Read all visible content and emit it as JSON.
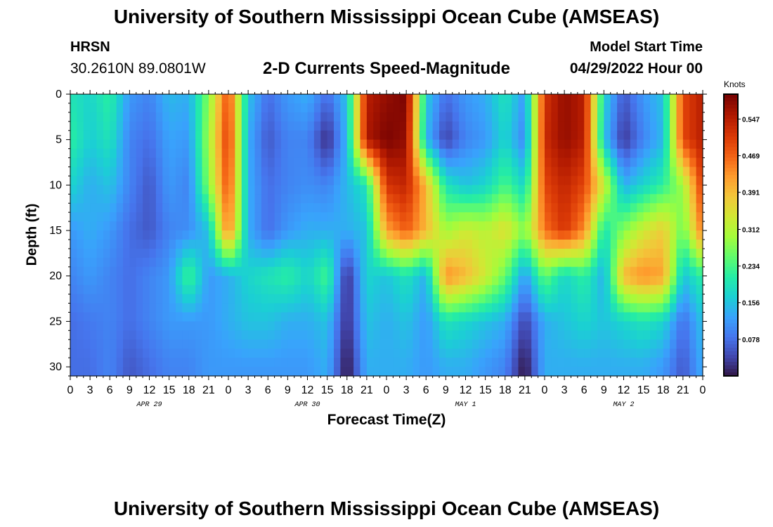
{
  "page": {
    "main_title": "University of Southern Mississippi Ocean Cube (AMSEAS)",
    "bottom_title": "University of Southern Mississippi Ocean Cube (AMSEAS)",
    "station": "HRSN",
    "coords": "30.2610N  89.0801W",
    "plot_title": "2-D Currents Speed-Magnitude",
    "start_label": "Model Start Time",
    "start_value": "04/29/2022 Hour 00"
  },
  "chart_data": {
    "type": "heatmap",
    "title": "2-D Currents Speed-Magnitude",
    "xlabel": "Forecast Time(Z)",
    "ylabel": "Depth (ft)",
    "x_range_hours": [
      0,
      96
    ],
    "y_range_ft": [
      0,
      31
    ],
    "x_tick_labels": [
      "0",
      "3",
      "6",
      "9",
      "12",
      "15",
      "18",
      "21",
      "0",
      "3",
      "6",
      "9",
      "12",
      "15",
      "18",
      "21",
      "0",
      "3",
      "6",
      "9",
      "12",
      "15",
      "18",
      "21",
      "0",
      "3",
      "6",
      "9",
      "12",
      "15",
      "18",
      "21",
      "0"
    ],
    "x_tick_hours": [
      0,
      3,
      6,
      9,
      12,
      15,
      18,
      21,
      24,
      27,
      30,
      33,
      36,
      39,
      42,
      45,
      48,
      51,
      54,
      57,
      60,
      63,
      66,
      69,
      72,
      75,
      78,
      81,
      84,
      87,
      90,
      93,
      96
    ],
    "y_ticks": [
      0,
      5,
      10,
      15,
      20,
      25,
      30
    ],
    "day_labels": [
      {
        "text": "APR 29",
        "hour": 12
      },
      {
        "text": "APR 30",
        "hour": 36
      },
      {
        "text": "MAY 1",
        "hour": 60
      },
      {
        "text": "MAY 2",
        "hour": 84
      }
    ],
    "colorbar": {
      "unit": "Knots",
      "ticks": [
        0.547,
        0.469,
        0.391,
        0.312,
        0.234,
        0.156,
        0.078
      ],
      "range": [
        0.0,
        0.6
      ],
      "colors": [
        "#30123b",
        "#4145ab",
        "#4675ed",
        "#39a2fc",
        "#1bcfd4",
        "#24eca6",
        "#61fc6c",
        "#a4fc3b",
        "#d1e834",
        "#f3c63a",
        "#fe9b2d",
        "#f36315",
        "#d93806",
        "#b11901",
        "#7a0402"
      ]
    },
    "columns_hours": [
      0,
      3,
      6,
      9,
      12,
      15,
      18,
      21,
      24,
      27,
      30,
      33,
      36,
      39,
      42,
      45,
      48,
      51,
      54,
      57,
      60,
      63,
      66,
      69,
      72,
      75,
      78,
      81,
      84,
      87,
      90,
      93,
      96
    ],
    "rows_depth_ft": [
      0,
      5,
      10,
      15,
      20,
      25,
      30
    ],
    "speed_knots": [
      [
        0.2,
        0.18,
        0.22,
        0.12,
        0.1,
        0.15,
        0.14,
        0.28,
        0.5,
        0.16,
        0.08,
        0.12,
        0.14,
        0.08,
        0.16,
        0.55,
        0.58,
        0.6,
        0.17,
        0.08,
        0.12,
        0.14,
        0.2,
        0.12,
        0.52,
        0.58,
        0.55,
        0.18,
        0.06,
        0.12,
        0.16,
        0.5,
        0.55
      ],
      [
        0.22,
        0.17,
        0.2,
        0.1,
        0.08,
        0.13,
        0.12,
        0.3,
        0.52,
        0.14,
        0.06,
        0.1,
        0.1,
        0.02,
        0.15,
        0.56,
        0.6,
        0.58,
        0.15,
        0.04,
        0.1,
        0.12,
        0.18,
        0.1,
        0.53,
        0.58,
        0.55,
        0.16,
        0.03,
        0.1,
        0.15,
        0.5,
        0.55
      ],
      [
        0.18,
        0.14,
        0.16,
        0.1,
        0.06,
        0.12,
        0.1,
        0.28,
        0.5,
        0.14,
        0.08,
        0.1,
        0.11,
        0.1,
        0.15,
        0.2,
        0.52,
        0.54,
        0.4,
        0.2,
        0.16,
        0.18,
        0.24,
        0.18,
        0.5,
        0.54,
        0.5,
        0.34,
        0.14,
        0.18,
        0.22,
        0.3,
        0.52
      ],
      [
        0.12,
        0.14,
        0.12,
        0.08,
        0.06,
        0.1,
        0.11,
        0.16,
        0.46,
        0.14,
        0.08,
        0.12,
        0.14,
        0.14,
        0.14,
        0.16,
        0.42,
        0.48,
        0.4,
        0.3,
        0.34,
        0.32,
        0.36,
        0.28,
        0.46,
        0.52,
        0.44,
        0.2,
        0.28,
        0.34,
        0.38,
        0.26,
        0.46
      ],
      [
        0.1,
        0.12,
        0.1,
        0.08,
        0.1,
        0.12,
        0.24,
        0.12,
        0.14,
        0.18,
        0.2,
        0.22,
        0.18,
        0.24,
        0.02,
        0.18,
        0.16,
        0.2,
        0.14,
        0.44,
        0.4,
        0.34,
        0.26,
        0.12,
        0.26,
        0.18,
        0.22,
        0.14,
        0.4,
        0.44,
        0.42,
        0.16,
        0.22
      ],
      [
        0.08,
        0.09,
        0.1,
        0.08,
        0.1,
        0.12,
        0.12,
        0.12,
        0.14,
        0.16,
        0.16,
        0.14,
        0.14,
        0.16,
        0.02,
        0.16,
        0.14,
        0.16,
        0.12,
        0.2,
        0.18,
        0.16,
        0.14,
        0.04,
        0.14,
        0.16,
        0.18,
        0.16,
        0.18,
        0.2,
        0.18,
        0.08,
        0.16
      ],
      [
        0.08,
        0.08,
        0.1,
        0.06,
        0.08,
        0.1,
        0.1,
        0.12,
        0.12,
        0.12,
        0.12,
        0.12,
        0.12,
        0.14,
        0.0,
        0.14,
        0.14,
        0.14,
        0.12,
        0.14,
        0.14,
        0.12,
        0.1,
        0.0,
        0.14,
        0.14,
        0.14,
        0.14,
        0.14,
        0.14,
        0.12,
        0.06,
        0.14
      ]
    ]
  }
}
